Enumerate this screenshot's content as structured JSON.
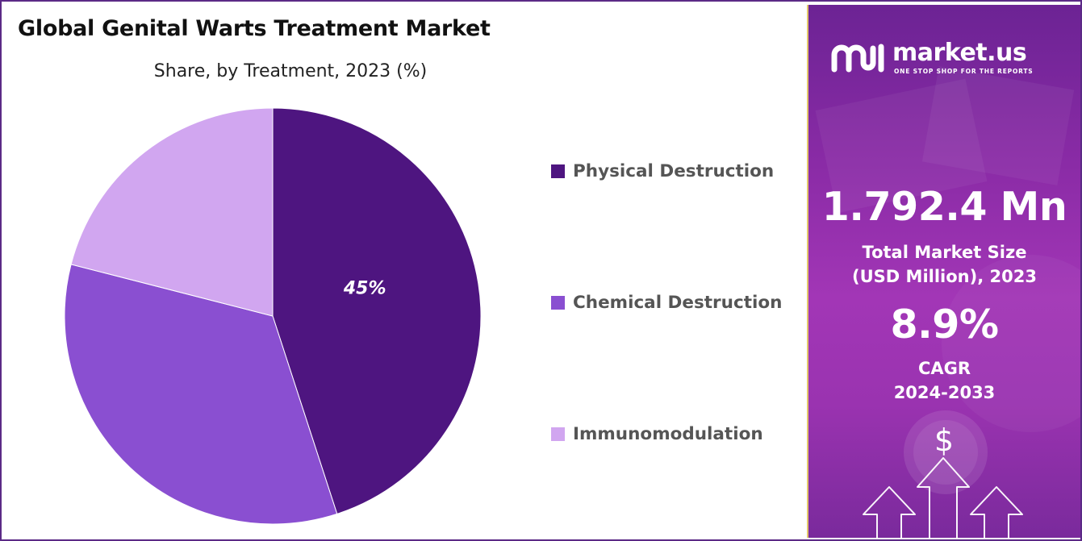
{
  "chart_data": {
    "type": "pie",
    "title": "Global Genital Warts Treatment Market",
    "subtitle": "Share, by Treatment, 2023 (%)",
    "slices": [
      {
        "name": "Physical Destruction",
        "value": 45,
        "label": "45%",
        "color": "#4e1580"
      },
      {
        "name": "Chemical Destruction",
        "value": 34,
        "label": "",
        "color": "#8a4fd1"
      },
      {
        "name": "Immunomodulation",
        "value": 21,
        "label": "",
        "color": "#d1a6f0"
      }
    ],
    "legend_position": "right"
  },
  "sidebar": {
    "brand": "market.us",
    "tagline": "ONE STOP SHOP FOR THE REPORTS",
    "market_size_value": "1.792.4 Mn",
    "market_size_label_line1": "Total Market Size",
    "market_size_label_line2": "(USD Million), 2023",
    "cagr_value": "8.9%",
    "cagr_label": "CAGR",
    "cagr_period": "2024-2033",
    "dollar_symbol": "$"
  }
}
